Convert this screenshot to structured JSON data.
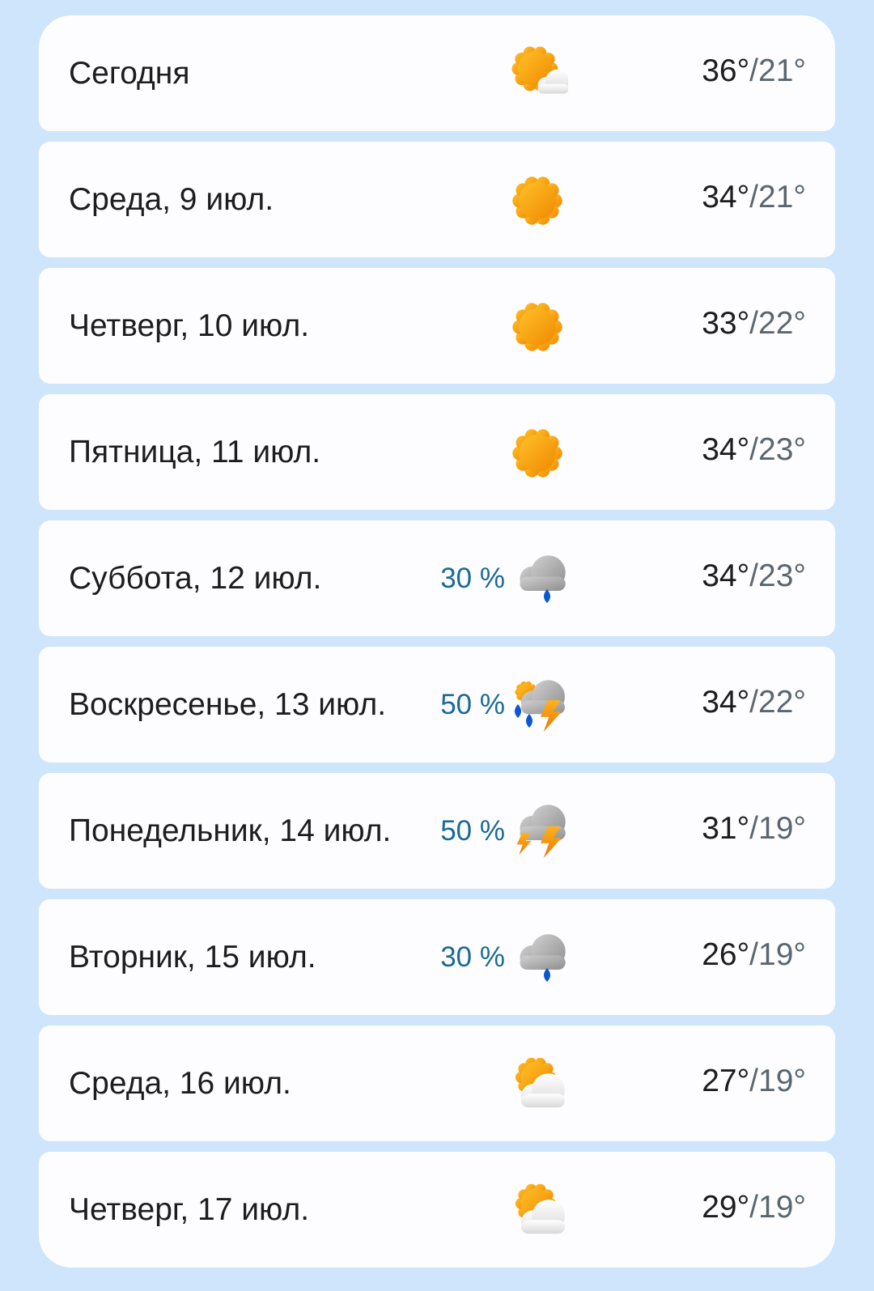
{
  "colors": {
    "background": "#cfe5fc",
    "card": "#fdfdff",
    "precip": "#1a6a96",
    "low_temp": "#5b6670"
  },
  "days": [
    {
      "label": "Сегодня",
      "precip": "",
      "icon": "partly-cloudy",
      "high": "36°",
      "low": "21°"
    },
    {
      "label": "Среда, 9 июл.",
      "precip": "",
      "icon": "sunny",
      "high": "34°",
      "low": "21°"
    },
    {
      "label": "Четверг, 10 июл.",
      "precip": "",
      "icon": "sunny",
      "high": "33°",
      "low": "22°"
    },
    {
      "label": "Пятница, 11 июл.",
      "precip": "",
      "icon": "sunny",
      "high": "34°",
      "low": "23°"
    },
    {
      "label": "Суббота, 12 июл.",
      "precip": "30 %",
      "icon": "rain-shower",
      "high": "34°",
      "low": "23°"
    },
    {
      "label": "Воскресенье, 13 июл.",
      "precip": "50 %",
      "icon": "thunderstorm-rain-sun",
      "high": "34°",
      "low": "22°"
    },
    {
      "label": "Понедельник, 14 июл.",
      "precip": "50 %",
      "icon": "thunderstorm",
      "high": "31°",
      "low": "19°"
    },
    {
      "label": "Вторник, 15 июл.",
      "precip": "30 %",
      "icon": "rain-shower",
      "high": "26°",
      "low": "19°"
    },
    {
      "label": "Среда, 16 июл.",
      "precip": "",
      "icon": "mostly-cloudy",
      "high": "27°",
      "low": "19°"
    },
    {
      "label": "Четверг, 17 июл.",
      "precip": "",
      "icon": "mostly-cloudy",
      "high": "29°",
      "low": "19°"
    }
  ]
}
